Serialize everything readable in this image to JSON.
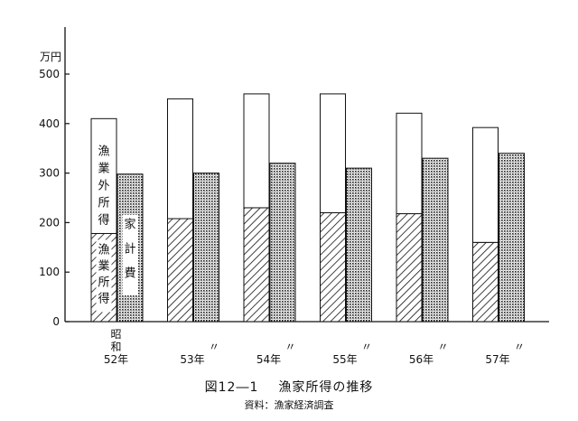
{
  "chart_data": {
    "type": "bar",
    "title": "漁家所得の推移",
    "figure_number": "図12―1",
    "source": "資料：漁家経済調査",
    "ylabel": "万円",
    "ylim": [
      0,
      500
    ],
    "yticks": [
      0,
      100,
      200,
      300,
      400,
      500
    ],
    "categories": [
      [
        "昭",
        "和",
        "52年"
      ],
      [
        "〃",
        "53年"
      ],
      [
        "〃",
        "54年"
      ],
      [
        "〃",
        "55年"
      ],
      [
        "〃",
        "56年"
      ],
      [
        "〃",
        "57年"
      ]
    ],
    "series": [
      {
        "name": "漁業所得",
        "stack": "income",
        "values": [
          178,
          208,
          230,
          220,
          218,
          160
        ]
      },
      {
        "name": "漁業外所得",
        "stack": "income",
        "values": [
          232,
          242,
          230,
          240,
          203,
          232
        ]
      },
      {
        "name": "家計費",
        "stack": "expenditure",
        "values": [
          298,
          300,
          320,
          310,
          330,
          340
        ]
      }
    ],
    "in_chart_labels": {
      "fishery_income": "漁業所得",
      "non_fishery_income": "漁業外所得",
      "household_expenditure": "家計費"
    },
    "colors": {
      "ink": "#111111",
      "white": "#ffffff"
    },
    "grid": false
  }
}
